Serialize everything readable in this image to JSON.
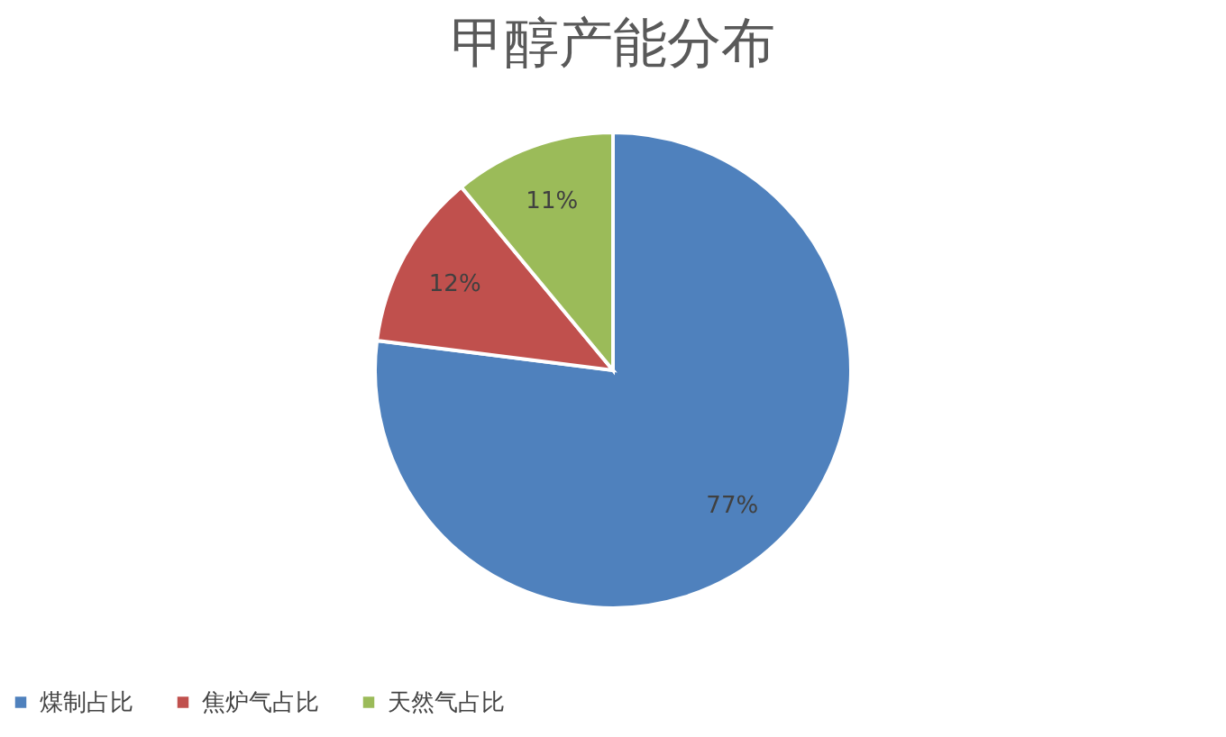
{
  "chart_data": {
    "type": "pie",
    "title": "甲醇产能分布",
    "categories": [
      "煤制占比",
      "焦炉气占比",
      "天然气占比"
    ],
    "values": [
      77,
      12,
      11
    ],
    "colors": [
      "#4f81bd",
      "#c0504d",
      "#9bbb59"
    ],
    "value_labels": [
      "77%",
      "12%",
      "11%"
    ],
    "legend": "bottom"
  }
}
